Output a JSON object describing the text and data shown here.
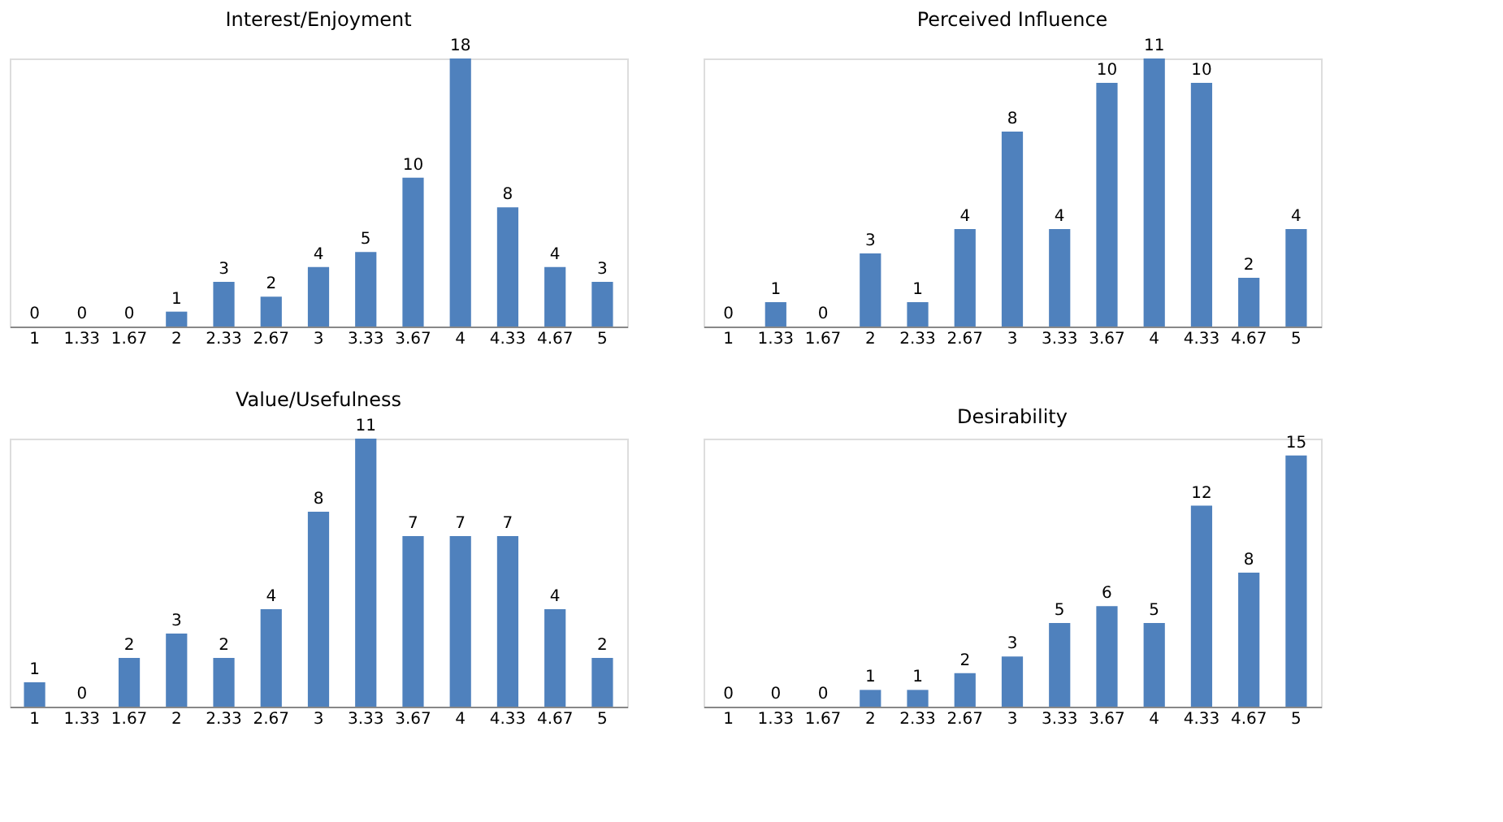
{
  "chart_data": [
    {
      "type": "bar",
      "title": "Interest/Enjoyment",
      "categories": [
        "1",
        "1.33",
        "1.67",
        "2",
        "2.33",
        "2.67",
        "3",
        "3.33",
        "3.67",
        "4",
        "4.33",
        "4.67",
        "5"
      ],
      "values": [
        0,
        0,
        0,
        1,
        3,
        2,
        4,
        5,
        10,
        18,
        8,
        4,
        3
      ],
      "color": "#4f81bd",
      "data_labels": true
    },
    {
      "type": "bar",
      "title": "Perceived Influence",
      "categories": [
        "1",
        "1.33",
        "1.67",
        "2",
        "2.33",
        "2.67",
        "3",
        "3.33",
        "3.67",
        "4",
        "4.33",
        "4.67",
        "5"
      ],
      "values": [
        0,
        1,
        0,
        3,
        1,
        4,
        8,
        4,
        10,
        11,
        10,
        2,
        4
      ],
      "color": "#4f81bd",
      "data_labels": true
    },
    {
      "type": "bar",
      "title": "Value/Usefulness",
      "categories": [
        "1",
        "1.33",
        "1.67",
        "2",
        "2.33",
        "2.67",
        "3",
        "3.33",
        "3.67",
        "4",
        "4.33",
        "4.67",
        "5"
      ],
      "values": [
        1,
        0,
        2,
        3,
        2,
        4,
        8,
        11,
        7,
        7,
        7,
        4,
        2
      ],
      "color": "#4f81bd",
      "data_labels": true
    },
    {
      "type": "bar",
      "title": "Desirability",
      "categories": [
        "1",
        "1.33",
        "1.67",
        "2",
        "2.33",
        "2.67",
        "3",
        "3.33",
        "3.67",
        "4",
        "4.33",
        "4.67",
        "5"
      ],
      "values": [
        0,
        0,
        0,
        1,
        1,
        2,
        3,
        5,
        6,
        5,
        12,
        8,
        15
      ],
      "color": "#4f81bd",
      "data_labels": true
    }
  ]
}
